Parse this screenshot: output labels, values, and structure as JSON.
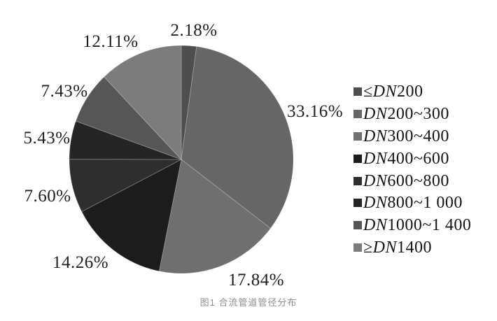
{
  "caption": "图1 合流管道管径分布",
  "chart_data": {
    "type": "pie",
    "title": "图1 合流管道管径分布",
    "start_angle_deg": 0,
    "direction": "clockwise",
    "legend_position": "right",
    "grid": false,
    "palette_style": "grayscale",
    "slices": [
      {
        "label": "≤DN200",
        "value": 2.18,
        "pct_label": "2.18%",
        "color": "#4e4e4e"
      },
      {
        "label": "DN200~300",
        "value": 33.16,
        "pct_label": "33.16%",
        "color": "#666666"
      },
      {
        "label": "DN300~400",
        "value": 17.84,
        "pct_label": "17.84%",
        "color": "#6f6f6f"
      },
      {
        "label": "DN400~600",
        "value": 14.26,
        "pct_label": "14.26%",
        "color": "#1c1c1c"
      },
      {
        "label": "DN600~800",
        "value": 7.6,
        "pct_label": "7.60%",
        "color": "#2e2e2e"
      },
      {
        "label": "DN800~1 000",
        "value": 5.43,
        "pct_label": "5.43%",
        "color": "#252525"
      },
      {
        "label": "DN1000~1 400",
        "value": 7.43,
        "pct_label": "7.43%",
        "color": "#565656"
      },
      {
        "label": "≥DN1400",
        "value": 12.11,
        "pct_label": "12.11%",
        "color": "#7c7c7c"
      }
    ]
  }
}
